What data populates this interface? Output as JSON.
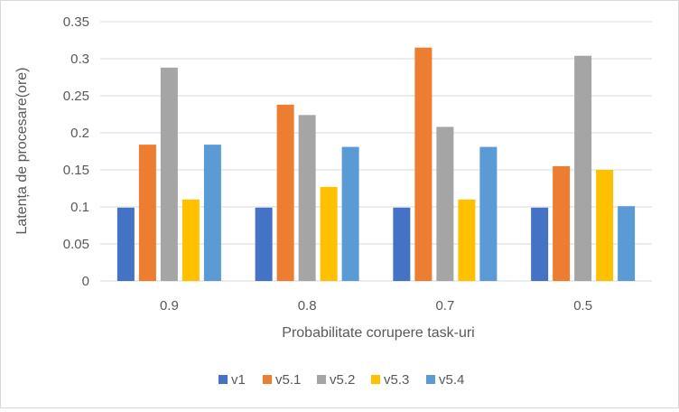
{
  "chart_data": {
    "type": "bar",
    "title": "",
    "xlabel": "Probabilitate corupere task-uri",
    "ylabel": "Latența de procesare(ore)",
    "categories": [
      "0.9",
      "0.8",
      "0.7",
      "0.5"
    ],
    "ylim": [
      0,
      0.35
    ],
    "yticks": [
      "0",
      "0.05",
      "0.1",
      "0.15",
      "0.2",
      "0.25",
      "0.3",
      "0.35"
    ],
    "grid": true,
    "legend_position": "bottom",
    "series": [
      {
        "name": "v1",
        "color": "#4472C4",
        "values": [
          0.099,
          0.099,
          0.099,
          0.099
        ]
      },
      {
        "name": "v5.1",
        "color": "#ED7D31",
        "values": [
          0.184,
          0.238,
          0.315,
          0.155
        ]
      },
      {
        "name": "v5.2",
        "color": "#A5A5A5",
        "values": [
          0.288,
          0.224,
          0.208,
          0.304
        ]
      },
      {
        "name": "v5.3",
        "color": "#FFC000",
        "values": [
          0.11,
          0.127,
          0.11,
          0.15
        ]
      },
      {
        "name": "v5.4",
        "color": "#5B9BD5",
        "values": [
          0.184,
          0.181,
          0.181,
          0.101
        ]
      }
    ]
  }
}
